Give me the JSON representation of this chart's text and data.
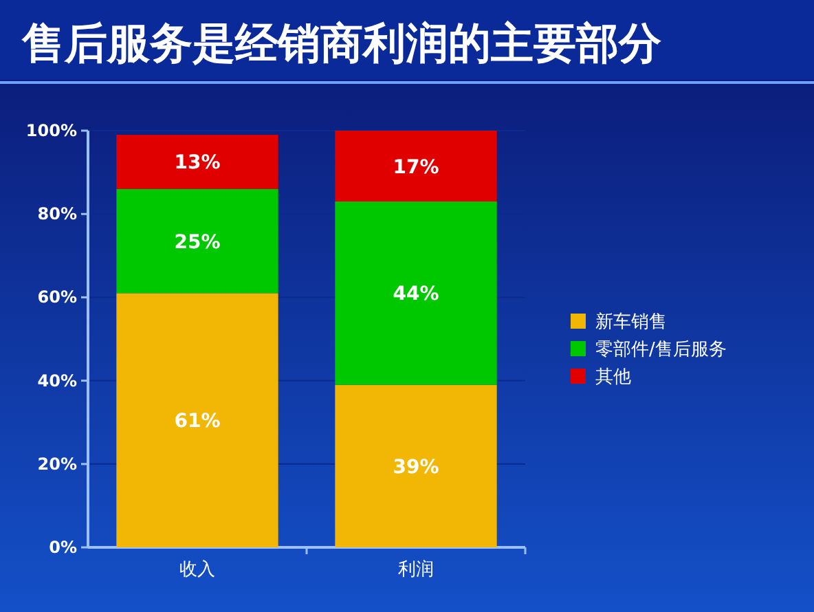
{
  "chart_data": {
    "type": "bar",
    "title": "售后服务是经销商利润的主要部分",
    "categories": [
      "收入",
      "利润"
    ],
    "series": [
      {
        "name": "新车销售",
        "color": "#f2b705",
        "values": [
          61,
          39
        ],
        "value_labels": [
          "61%",
          "39%"
        ]
      },
      {
        "name": "零部件/售后服务",
        "color": "#00c800",
        "values": [
          25,
          44
        ],
        "value_labels": [
          "25%",
          "44%"
        ]
      },
      {
        "name": "其他",
        "color": "#e00000",
        "values": [
          13,
          17
        ],
        "value_labels": [
          "13%",
          "17%"
        ]
      }
    ],
    "stacked": true,
    "ylim": [
      0,
      100
    ],
    "yticks": [
      {
        "value": 0,
        "label": "0%"
      },
      {
        "value": 20,
        "label": "20%"
      },
      {
        "value": 40,
        "label": "40%"
      },
      {
        "value": 60,
        "label": "60%"
      },
      {
        "value": 80,
        "label": "80%"
      },
      {
        "value": 100,
        "label": "100%"
      }
    ],
    "grid": "y",
    "legend": "right"
  }
}
